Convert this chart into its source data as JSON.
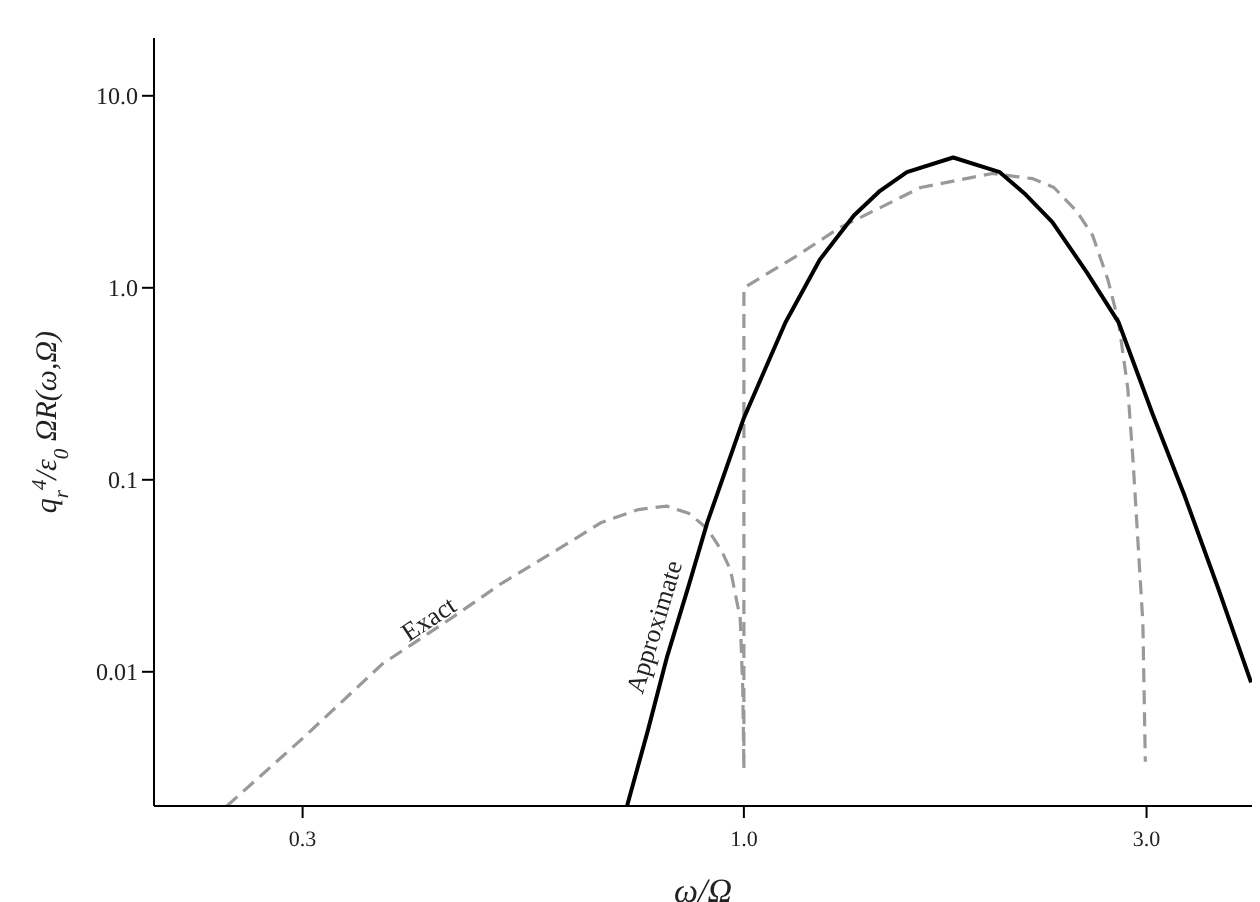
{
  "chart_data": {
    "type": "line",
    "xlabel": "ω/Ω",
    "ylabel": "q$_{r}$$^{4}$/ε$_{0}$ ΩR(ω,Ω)",
    "log": "xy",
    "xlim": [
      0.2,
      4
    ],
    "ylim": [
      0.002,
      20
    ],
    "xticks": [
      0.3,
      {
        "value": 1,
        "label": "1.0"
      },
      {
        "value": 3,
        "label": "3.0"
      }
    ],
    "yticks": [
      0.01,
      0.1,
      {
        "value": 1,
        "label": "1.0"
      },
      {
        "value": 10,
        "label": "10.0"
      }
    ],
    "series": [
      {
        "name": "Exact",
        "color": "#999999",
        "line_style": "dashed",
        "x": [
          0.244,
          0.3,
          0.373,
          0.45,
          0.517,
          0.6,
          0.678,
          0.75,
          0.81,
          0.86,
          0.904,
          0.94,
          0.964,
          0.99,
          0.997,
          1.0,
          1.0,
          1.15,
          1.3,
          1.62,
          1.97,
          2.2,
          2.33,
          2.48,
          2.59,
          2.7,
          2.78,
          2.85,
          2.89,
          2.97,
          2.99
        ],
        "values": [
          0.002,
          0.0045,
          0.011,
          0.019,
          0.029,
          0.043,
          0.06,
          0.07,
          0.073,
          0.067,
          0.056,
          0.043,
          0.034,
          0.019,
          0.008,
          0.0031,
          1.0,
          1.45,
          2.06,
          3.33,
          3.94,
          3.7,
          3.33,
          2.5,
          1.87,
          1.1,
          0.66,
          0.3,
          0.13,
          0.018,
          0.0034
        ]
      },
      {
        "name": "Approximate",
        "color": "#000000",
        "line_style": "solid",
        "x": [
          0.727,
          0.77,
          0.811,
          0.86,
          0.905,
          1.0,
          1.12,
          1.23,
          1.35,
          1.45,
          1.56,
          1.77,
          2.01,
          2.15,
          2.32,
          2.55,
          2.78,
          3.05,
          3.33,
          3.65,
          3.99
        ],
        "values": [
          0.002,
          0.005,
          0.012,
          0.028,
          0.06,
          0.21,
          0.66,
          1.4,
          2.38,
          3.2,
          4.0,
          4.77,
          4.0,
          3.1,
          2.2,
          1.2,
          0.66,
          0.22,
          0.082,
          0.027,
          0.0088
        ]
      }
    ]
  }
}
